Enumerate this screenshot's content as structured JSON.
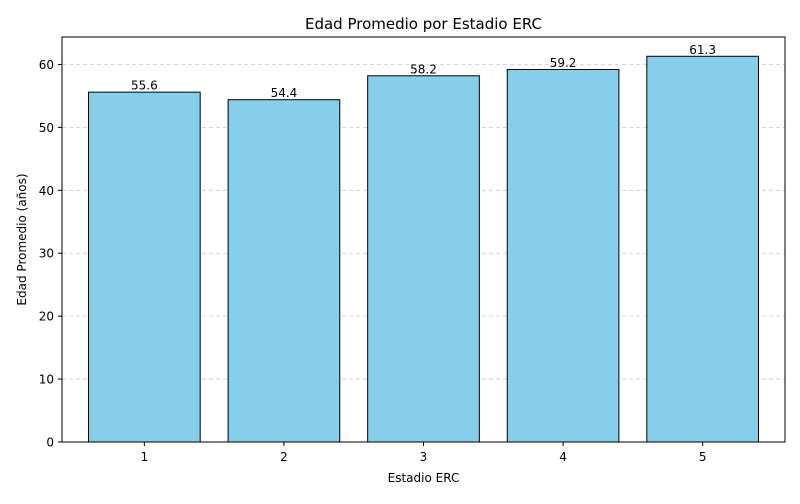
{
  "chart_data": {
    "type": "bar",
    "title": "Edad Promedio por Estadio ERC",
    "xlabel": "Estadio ERC",
    "ylabel": "Edad Promedio (años)",
    "categories": [
      "1",
      "2",
      "3",
      "4",
      "5"
    ],
    "values": [
      55.6,
      54.4,
      58.2,
      59.2,
      61.3
    ],
    "value_labels": [
      "55.6",
      "54.4",
      "58.2",
      "59.2",
      "61.3"
    ],
    "ylim": [
      0,
      64.365
    ],
    "yticks": [
      0,
      10,
      20,
      30,
      40,
      50,
      60
    ],
    "ytick_labels": [
      "0",
      "10",
      "20",
      "30",
      "40",
      "50",
      "60"
    ],
    "grid": "y-dashed",
    "colors": {
      "bar_fill": "#87ceeb",
      "bar_edge": "#000000",
      "grid": "#cccccc"
    }
  }
}
